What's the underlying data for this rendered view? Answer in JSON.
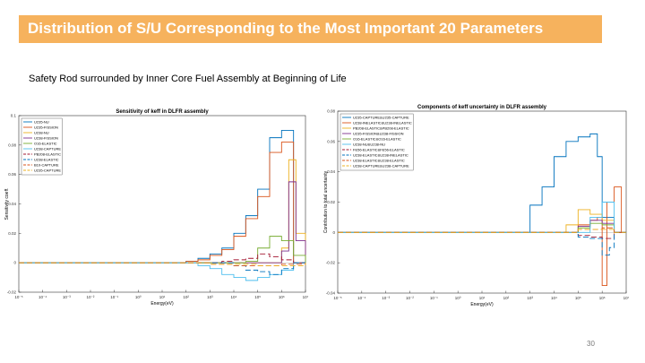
{
  "slide": {
    "title": "Distribution of S/U Corresponding to the Most Important 20 Parameters",
    "subtitle": "Safety Rod surrounded by Inner Core Fuel Assembly at Beginning of Life",
    "page_number": "30"
  },
  "chart_data": [
    {
      "type": "line",
      "title": "Sensitivity of keff in DLFR assembly",
      "xlabel": "Energy(eV)",
      "ylabel": "Sensitivity coeff.",
      "xscale": "log",
      "xlim_exp": [
        -5,
        7
      ],
      "xtick_labels": [
        "10⁻⁵",
        "10⁻⁴",
        "10⁻³",
        "10⁻²",
        "10⁻¹",
        "10⁰",
        "10¹",
        "10²",
        "10³",
        "10⁴",
        "10⁵",
        "10⁶",
        "10⁷"
      ],
      "ylim": [
        -0.02,
        0.1
      ],
      "yticks": [
        -0.02,
        0,
        0.02,
        0.04,
        0.06,
        0.08,
        0.1
      ],
      "ytick_labels": [
        "-0.02",
        "0",
        "0.02",
        "0.04",
        "0.06",
        "0.08",
        "0.1"
      ],
      "legend_position": "top-left",
      "series": [
        {
          "name": "U235-NU",
          "color": "#0072bd",
          "dash": "",
          "x": [
            2,
            2.5,
            3,
            3.5,
            4,
            4.5,
            5,
            5.5,
            6,
            6.5
          ],
          "y": [
            0.001,
            0.003,
            0.006,
            0.01,
            0.02,
            0.032,
            0.05,
            0.085,
            0.09,
            0.0
          ]
        },
        {
          "name": "U235-FISSION",
          "color": "#d95319",
          "dash": "",
          "x": [
            2,
            2.5,
            3,
            3.5,
            4,
            4.5,
            5,
            5.5,
            6,
            6.5
          ],
          "y": [
            0.001,
            0.002,
            0.005,
            0.009,
            0.018,
            0.03,
            0.045,
            0.075,
            0.082,
            0.0
          ]
        },
        {
          "name": "U238-NU",
          "color": "#edb120",
          "dash": "",
          "x": [
            5,
            5.5,
            6,
            6.3,
            6.6,
            7
          ],
          "y": [
            0.0,
            0.0,
            0.01,
            0.07,
            0.02,
            0.0
          ]
        },
        {
          "name": "U238-FISSION",
          "color": "#7e2f8e",
          "dash": "",
          "x": [
            5,
            5.5,
            6,
            6.3,
            6.6,
            7
          ],
          "y": [
            0.0,
            0.0,
            0.008,
            0.055,
            0.015,
            0.0
          ]
        },
        {
          "name": "O16-ELASTIC",
          "color": "#77ac30",
          "dash": "",
          "x": [
            4,
            4.5,
            5,
            5.5,
            6,
            6.5,
            7
          ],
          "y": [
            0.0,
            0.001,
            0.01,
            0.018,
            0.015,
            0.005,
            0.0
          ]
        },
        {
          "name": "U238-CAPTURE",
          "color": "#4dbeee",
          "dash": "",
          "x": [
            2,
            2.5,
            3,
            3.5,
            4,
            4.5,
            5,
            5.5,
            6,
            6.5
          ],
          "y": [
            0.0,
            -0.002,
            -0.004,
            -0.008,
            -0.01,
            -0.012,
            -0.01,
            -0.008,
            -0.005,
            0.0
          ]
        },
        {
          "name": "PB208-ELASTIC",
          "color": "#a2142f",
          "dash": "6 3",
          "x": [
            3,
            3.5,
            4,
            4.5,
            5,
            5.5,
            6,
            6.5
          ],
          "y": [
            0.0,
            0.001,
            0.002,
            0.003,
            0.006,
            0.004,
            0.002,
            0.0
          ]
        },
        {
          "name": "U238-ELASTIC",
          "color": "#0072bd",
          "dash": "6 3",
          "x": [
            3,
            4,
            4.5,
            5,
            5.5,
            6,
            6.5
          ],
          "y": [
            0.0,
            -0.002,
            -0.005,
            -0.006,
            -0.008,
            -0.004,
            0.0
          ]
        },
        {
          "name": "B10-CAPTURE",
          "color": "#d95319",
          "dash": "6 3",
          "x": [
            2,
            3,
            4,
            5,
            6,
            7
          ],
          "y": [
            0.0,
            -0.001,
            -0.002,
            -0.002,
            -0.001,
            0.0
          ]
        },
        {
          "name": "U235-CAPTURE",
          "color": "#edb120",
          "dash": "6 3",
          "x": [
            2,
            3,
            4,
            5,
            6,
            7
          ],
          "y": [
            0.0,
            -0.001,
            -0.001,
            -0.002,
            -0.002,
            0.0
          ]
        }
      ]
    },
    {
      "type": "line",
      "title": "Components of keff uncertainty in DLFR assembly",
      "xlabel": "Energy(eV)",
      "ylabel": "Contribution to total uncertainty",
      "xscale": "log",
      "xlim_exp": [
        -5,
        7
      ],
      "xtick_labels": [
        "10⁻⁵",
        "10⁻⁴",
        "10⁻³",
        "10⁻²",
        "10⁻¹",
        "10⁰",
        "10¹",
        "10²",
        "10³",
        "10⁴",
        "10⁵",
        "10⁶",
        "10⁷"
      ],
      "ylim": [
        -0.04,
        0.08
      ],
      "yticks": [
        -0.04,
        -0.02,
        0,
        0.02,
        0.04,
        0.06,
        0.08
      ],
      "ytick_labels": [
        "-0.04",
        "-0.02",
        "0",
        "0.02",
        "0.04",
        "0.06",
        "0.08"
      ],
      "legend_position": "top-left",
      "series": [
        {
          "name": "U235-CAPTURE&U235-CAPTURE",
          "color": "#0072bd",
          "dash": "",
          "x": [
            3,
            3.5,
            4,
            4.5,
            5,
            5.5,
            5.8,
            6,
            6.5
          ],
          "y": [
            0.018,
            0.03,
            0.05,
            0.06,
            0.063,
            0.065,
            0.05,
            0.01,
            0.0
          ]
        },
        {
          "name": "U238-INELASTIC&U238-INELASTIC",
          "color": "#d95319",
          "dash": "",
          "x": [
            4,
            5,
            5.5,
            5.8,
            6,
            6.2,
            6.5,
            6.8
          ],
          "y": [
            0.0,
            0.005,
            0.008,
            0.01,
            -0.035,
            0.02,
            0.03,
            0.0
          ]
        },
        {
          "name": "PB208-ELASTIC&PB208-ELASTIC",
          "color": "#edb120",
          "dash": "",
          "x": [
            4,
            4.5,
            5,
            5.5,
            6,
            6.5
          ],
          "y": [
            0.0,
            0.005,
            0.015,
            0.012,
            0.008,
            0.0
          ]
        },
        {
          "name": "U235-FISSION&U238-FISSION",
          "color": "#7e2f8e",
          "dash": "",
          "x": [
            4,
            5,
            5.5,
            6,
            6.5
          ],
          "y": [
            0.0,
            0.004,
            0.008,
            0.006,
            0.0
          ]
        },
        {
          "name": "O16-ELASTIC&O16-ELASTIC",
          "color": "#77ac30",
          "dash": "",
          "x": [
            4,
            5,
            5.5,
            6,
            6.5
          ],
          "y": [
            0.0,
            0.003,
            0.006,
            0.005,
            0.0
          ]
        },
        {
          "name": "U238-NU&U238-NU",
          "color": "#4dbeee",
          "dash": "",
          "x": [
            5,
            5.5,
            6,
            6.5
          ],
          "y": [
            0.0,
            0.01,
            0.02,
            0.0
          ]
        },
        {
          "name": "FE56-ELASTIC&FE56-ELASTIC",
          "color": "#a2142f",
          "dash": "6 3",
          "x": [
            4,
            5,
            5.5,
            6,
            6.5
          ],
          "y": [
            0.0,
            -0.002,
            -0.003,
            -0.004,
            0.0
          ]
        },
        {
          "name": "U238-ELASTIC&U238-INELASTIC",
          "color": "#0072bd",
          "dash": "6 3",
          "x": [
            4,
            5,
            5.5,
            6,
            6.3,
            6.5
          ],
          "y": [
            0.0,
            -0.003,
            -0.004,
            -0.015,
            -0.01,
            0.0
          ]
        },
        {
          "name": "U238-ELASTIC&U238-ELASTIC",
          "color": "#d95319",
          "dash": "6 3",
          "x": [
            4,
            5,
            6,
            6.5
          ],
          "y": [
            0.0,
            0.002,
            0.003,
            0.0
          ]
        },
        {
          "name": "U238-CAPTURE&U238-CAPTURE",
          "color": "#edb120",
          "dash": "6 3",
          "x": [
            4,
            5,
            6,
            6.5
          ],
          "y": [
            0.0,
            0.002,
            0.002,
            0.0
          ]
        }
      ]
    }
  ]
}
